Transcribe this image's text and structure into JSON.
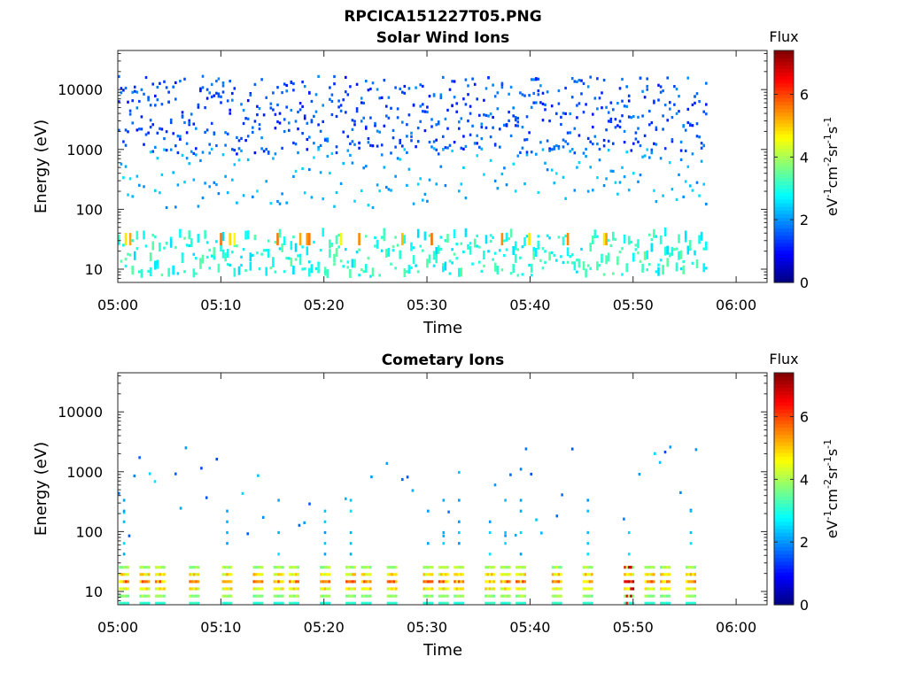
{
  "figure_title": "RPCICA151227T05.PNG",
  "colors": {
    "colormap": "jet",
    "axes": "#262626",
    "background": "#ffffff"
  },
  "chart_data": [
    {
      "type": "heatmap",
      "title": "Solar Wind Ions",
      "xlabel": "Time",
      "ylabel": "Energy (eV)",
      "yscale": "log",
      "ylim": [
        6,
        45000
      ],
      "xlim": [
        "05:00",
        "06:03"
      ],
      "xticks": [
        "05:00",
        "05:10",
        "05:20",
        "05:30",
        "05:40",
        "05:50",
        "06:00"
      ],
      "yticks": [
        10,
        100,
        1000,
        10000
      ],
      "ytick_labels": [
        "10",
        "100",
        "1000",
        "10000"
      ],
      "data_end": "05:57",
      "colorbar": {
        "title": "Flux",
        "label": "eV-1cm-2sr-1s-1",
        "range": [
          0,
          7.4
        ],
        "ticks": [
          0,
          2,
          4,
          6
        ],
        "tick_labels": [
          "0",
          "2",
          "4",
          "6"
        ]
      },
      "description_bands": [
        {
          "energy_range": [
            1000,
            15000
          ],
          "flux": 1.4,
          "density": "sparse"
        },
        {
          "energy_range": [
            100,
            1000
          ],
          "flux": 2.1,
          "density": "sparse"
        },
        {
          "energy_range": [
            7,
            40
          ],
          "flux": 3.0,
          "density": "moderate"
        }
      ]
    },
    {
      "type": "heatmap",
      "title": "Cometary Ions",
      "xlabel": "Time",
      "ylabel": "Energy (eV)",
      "yscale": "log",
      "ylim": [
        6,
        45000
      ],
      "xlim": [
        "05:00",
        "06:03"
      ],
      "xticks": [
        "05:00",
        "05:10",
        "05:20",
        "05:30",
        "05:40",
        "05:50",
        "06:00"
      ],
      "yticks": [
        10,
        100,
        1000,
        10000
      ],
      "ytick_labels": [
        "10",
        "100",
        "1000",
        "10000"
      ],
      "data_end": "05:57",
      "colorbar": {
        "title": "Flux",
        "label": "eV-1cm-2sr-1s-1",
        "range": [
          0,
          7.4
        ],
        "ticks": [
          0,
          2,
          4,
          6
        ],
        "tick_labels": [
          "0",
          "2",
          "4",
          "6"
        ]
      },
      "burst_times_min": [
        0.5,
        2.5,
        4,
        7.3,
        10.5,
        13.5,
        15.5,
        17,
        20,
        22.5,
        24,
        26.5,
        30,
        31.5,
        33,
        36,
        37.5,
        39,
        42.5,
        45.5,
        49.5,
        51.5,
        53,
        55.5
      ]
    }
  ]
}
